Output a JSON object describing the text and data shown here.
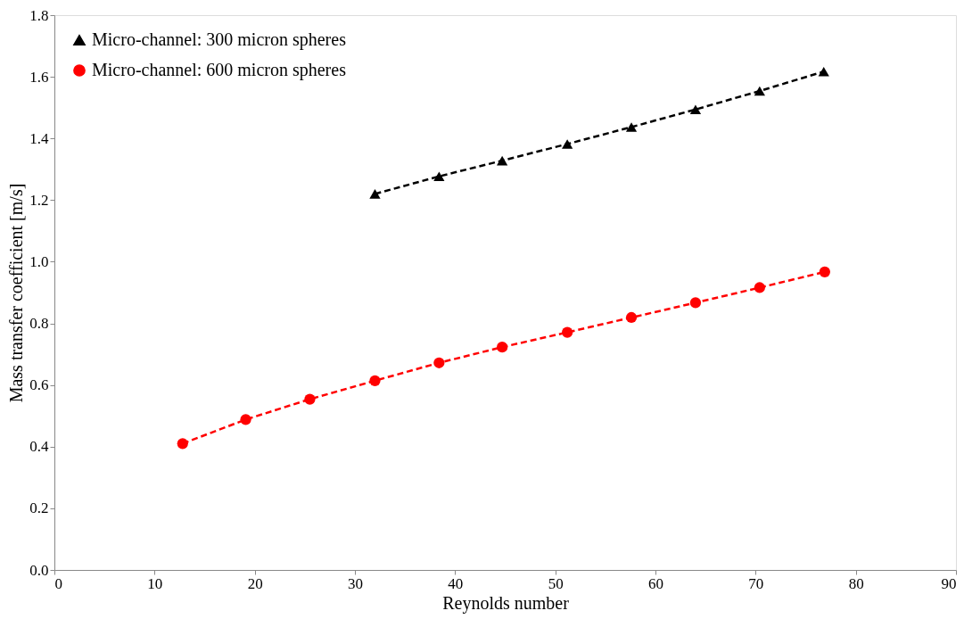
{
  "chart_data": {
    "type": "line",
    "xlabel": "Reynolds number",
    "ylabel": "Mass transfer coefficient [m/s]",
    "xlim": [
      0,
      90
    ],
    "xticks": [
      0,
      10,
      20,
      30,
      40,
      50,
      60,
      70,
      80,
      90
    ],
    "ylim": [
      0,
      1.8
    ],
    "yticks": [
      {
        "value": 0,
        "label": "0.0"
      },
      0.2,
      0.4,
      0.6,
      0.8,
      {
        "value": 1,
        "label": "1.0"
      },
      1.2,
      1.4,
      1.6,
      1.8
    ],
    "grid": false,
    "legend": "top left",
    "line_style": "dashed",
    "series": [
      {
        "name": "Micro-channel: 300 micron spheres",
        "color": "#000000",
        "marker": "triangle",
        "x": [
          32,
          38.4,
          44.7,
          51.2,
          57.6,
          64,
          70.4,
          76.8
        ],
        "values": [
          1.22,
          1.277,
          1.328,
          1.382,
          1.437,
          1.494,
          1.554,
          1.617
        ]
      },
      {
        "name": "Micro-channel: 600 micron spheres",
        "color": "#ff0000",
        "marker": "circle",
        "x": [
          12.8,
          19.1,
          25.5,
          32,
          38.4,
          44.7,
          51.2,
          57.6,
          64,
          70.4,
          76.9
        ],
        "values": [
          0.41,
          0.488,
          0.554,
          0.614,
          0.672,
          0.723,
          0.771,
          0.819,
          0.867,
          0.916,
          0.967
        ]
      }
    ]
  }
}
